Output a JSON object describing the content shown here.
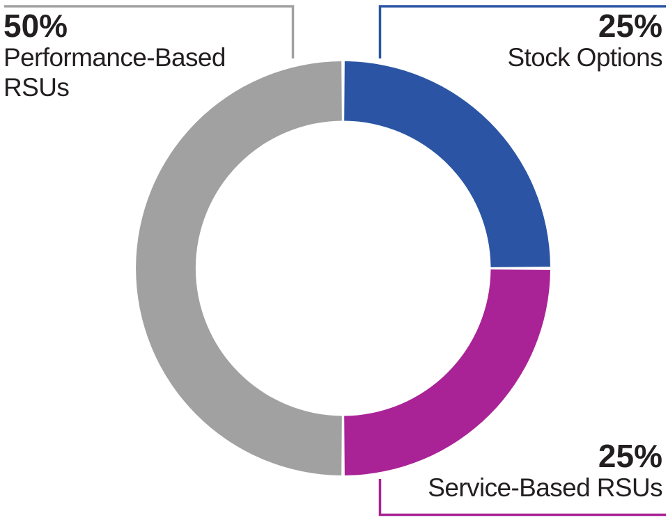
{
  "chart_data": {
    "type": "pie",
    "subtype": "donut",
    "title": "",
    "categories": [
      "Stock Options",
      "Service-Based RSUs",
      "Performance-Based RSUs"
    ],
    "values": [
      25,
      25,
      50
    ],
    "legend_position": "callout-labels",
    "segments": [
      {
        "label": "Stock Options",
        "pct_label": "25%",
        "value": 25,
        "color": "#2b55a4",
        "start_deg": 0,
        "end_deg": 90
      },
      {
        "label": "Service-Based RSUs",
        "pct_label": "25%",
        "value": 25,
        "color": "#a92396",
        "start_deg": 90,
        "end_deg": 180
      },
      {
        "label": "Performance-Based RSUs",
        "pct_label": "50%",
        "value": 50,
        "color": "#a1a1a1",
        "start_deg": 180,
        "end_deg": 360
      }
    ]
  },
  "labels": {
    "top_left": {
      "pct": "50%",
      "lines": [
        "Performance-Based",
        "RSUs"
      ],
      "segment": "Performance-Based RSUs"
    },
    "top_right": {
      "pct": "25%",
      "lines": [
        "Stock Options"
      ],
      "segment": "Stock Options"
    },
    "bottom_right": {
      "pct": "25%",
      "lines": [
        "Service-Based RSUs"
      ],
      "segment": "Service-Based RSUs"
    }
  },
  "colors": {
    "background": "#ffffff",
    "text": "#231f20",
    "blue": "#2b55a4",
    "magenta": "#a92396",
    "gray": "#a1a1a1"
  }
}
